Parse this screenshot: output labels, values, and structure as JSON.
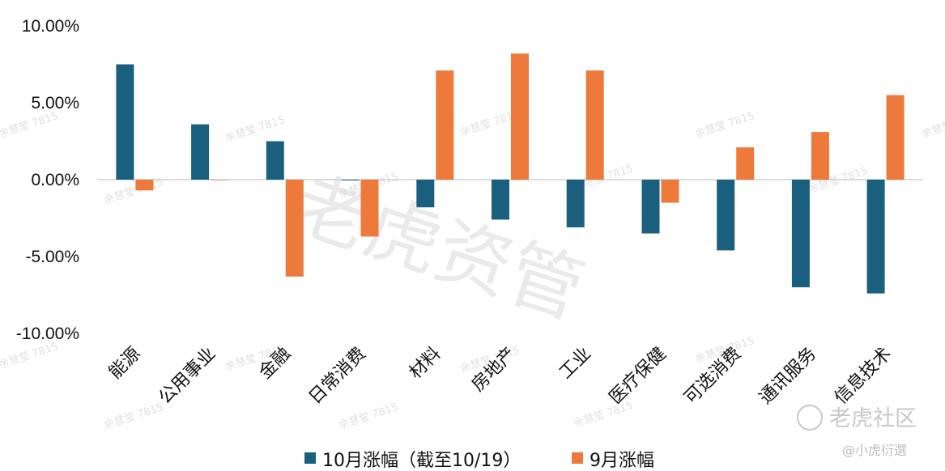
{
  "chart_data": {
    "type": "bar",
    "categories": [
      "能源",
      "公用事业",
      "金融",
      "日常消费",
      "材料",
      "房地产",
      "工业",
      "医疗保健",
      "可选消费",
      "通讯服务",
      "信息技术"
    ],
    "series": [
      {
        "name": "10月涨幅（截至10/19）",
        "color": "#1b5f7f",
        "values": [
          7.5,
          3.6,
          2.5,
          -0.05,
          -1.8,
          -2.6,
          -3.1,
          -3.5,
          -4.6,
          -7.0,
          -7.4
        ]
      },
      {
        "name": "9月涨幅",
        "color": "#ed7a3a",
        "values": [
          -0.7,
          0.0,
          -6.3,
          -3.7,
          7.1,
          8.2,
          7.1,
          -1.5,
          2.1,
          3.1,
          5.5
        ]
      }
    ],
    "ylim": [
      -10,
      10
    ],
    "yticks": [
      10,
      5,
      0,
      -5,
      -10
    ],
    "ytick_labels": [
      "10.00%",
      "5.00%",
      "0.00%",
      "-5.00%",
      "-10.00%"
    ],
    "grid": false,
    "legend_position": "bottom"
  },
  "watermarks": {
    "main": "老虎资管",
    "small": "余慧莹 7815",
    "logo": "老虎社区",
    "handle": "@小虎衍選"
  }
}
